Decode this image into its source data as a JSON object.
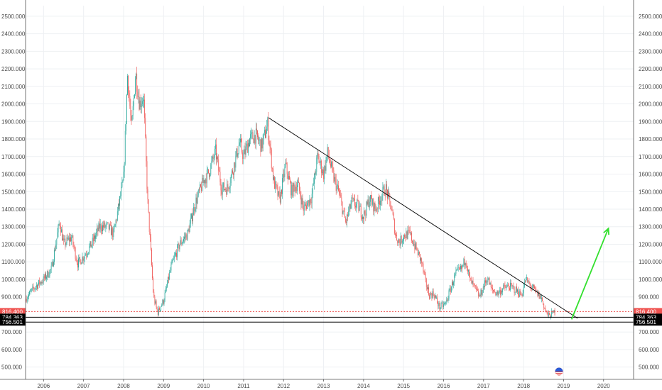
{
  "chart_data": {
    "type": "candlestick",
    "y_axis": {
      "range": [
        430,
        2560
      ],
      "ticks": [
        500,
        600,
        700,
        900,
        1000,
        1100,
        1200,
        1300,
        1400,
        1500,
        1600,
        1700,
        1800,
        1900,
        2000,
        2100,
        2200,
        2300,
        2400,
        2500
      ],
      "tick_labels": [
        "500.000",
        "600.000",
        "700.000",
        "900.000",
        "1000.000",
        "1100.000",
        "1200.000",
        "1300.000",
        "1400.000",
        "1500.000",
        "1600.000",
        "1700.000",
        "1800.000",
        "1900.000",
        "2000.000",
        "2100.000",
        "2200.000",
        "2300.000",
        "2400.000",
        "2500.000"
      ],
      "scale": "linear",
      "sides": [
        "left",
        "right"
      ]
    },
    "x_axis": {
      "range": [
        2005.55,
        2020.75
      ],
      "ticks": [
        2006,
        2007,
        2008,
        2009,
        2010,
        2011,
        2012,
        2013,
        2014,
        2015,
        2016,
        2017,
        2018,
        2019,
        2020
      ],
      "tick_labels": [
        "2006",
        "2007",
        "2008",
        "2009",
        "2010",
        "2011",
        "2012",
        "2013",
        "2014",
        "2015",
        "2016",
        "2017",
        "2018",
        "2019",
        "2020"
      ]
    },
    "grid": true,
    "colors": {
      "up": "#26a69a",
      "down": "#ef5350",
      "trendline": "#000000",
      "arrow": "#33e02e",
      "price_line": "#ef5350"
    },
    "price_path": [
      [
        2005.55,
        890
      ],
      [
        2005.8,
        960
      ],
      [
        2006.0,
        1000
      ],
      [
        2006.2,
        1060
      ],
      [
        2006.4,
        1330
      ],
      [
        2006.5,
        1200
      ],
      [
        2006.7,
        1240
      ],
      [
        2006.85,
        1090
      ],
      [
        2007.0,
        1130
      ],
      [
        2007.2,
        1200
      ],
      [
        2007.4,
        1300
      ],
      [
        2007.6,
        1300
      ],
      [
        2007.75,
        1260
      ],
      [
        2008.0,
        1570
      ],
      [
        2008.1,
        2170
      ],
      [
        2008.2,
        1850
      ],
      [
        2008.3,
        2180
      ],
      [
        2008.4,
        2000
      ],
      [
        2008.5,
        2050
      ],
      [
        2008.6,
        1450
      ],
      [
        2008.75,
        900
      ],
      [
        2008.85,
        810
      ],
      [
        2009.0,
        880
      ],
      [
        2009.2,
        1080
      ],
      [
        2009.4,
        1200
      ],
      [
        2009.6,
        1260
      ],
      [
        2009.8,
        1440
      ],
      [
        2010.0,
        1560
      ],
      [
        2010.15,
        1620
      ],
      [
        2010.3,
        1730
      ],
      [
        2010.45,
        1520
      ],
      [
        2010.6,
        1520
      ],
      [
        2010.75,
        1640
      ],
      [
        2010.9,
        1780
      ],
      [
        2011.0,
        1700
      ],
      [
        2011.15,
        1800
      ],
      [
        2011.3,
        1820
      ],
      [
        2011.45,
        1760
      ],
      [
        2011.6,
        1880
      ],
      [
        2011.75,
        1560
      ],
      [
        2011.9,
        1450
      ],
      [
        2012.05,
        1650
      ],
      [
        2012.2,
        1500
      ],
      [
        2012.35,
        1550
      ],
      [
        2012.5,
        1400
      ],
      [
        2012.7,
        1470
      ],
      [
        2012.85,
        1700
      ],
      [
        2013.0,
        1600
      ],
      [
        2013.1,
        1720
      ],
      [
        2013.25,
        1580
      ],
      [
        2013.4,
        1480
      ],
      [
        2013.55,
        1320
      ],
      [
        2013.7,
        1440
      ],
      [
        2013.85,
        1420
      ],
      [
        2014.0,
        1360
      ],
      [
        2014.15,
        1460
      ],
      [
        2014.3,
        1400
      ],
      [
        2014.45,
        1480
      ],
      [
        2014.55,
        1520
      ],
      [
        2014.7,
        1400
      ],
      [
        2014.8,
        1250
      ],
      [
        2014.9,
        1210
      ],
      [
        2015.0,
        1250
      ],
      [
        2015.15,
        1260
      ],
      [
        2015.3,
        1180
      ],
      [
        2015.45,
        1100
      ],
      [
        2015.55,
        980
      ],
      [
        2015.65,
        910
      ],
      [
        2015.75,
        920
      ],
      [
        2015.9,
        840
      ],
      [
        2016.05,
        860
      ],
      [
        2016.15,
        930
      ],
      [
        2016.3,
        1030
      ],
      [
        2016.45,
        1060
      ],
      [
        2016.55,
        1120
      ],
      [
        2016.65,
        1000
      ],
      [
        2016.8,
        940
      ],
      [
        2016.9,
        900
      ],
      [
        2017.0,
        960
      ],
      [
        2017.1,
        1010
      ],
      [
        2017.2,
        940
      ],
      [
        2017.35,
        920
      ],
      [
        2017.5,
        950
      ],
      [
        2017.65,
        960
      ],
      [
        2017.8,
        940
      ],
      [
        2017.95,
        910
      ],
      [
        2018.05,
        1000
      ],
      [
        2018.15,
        970
      ],
      [
        2018.3,
        930
      ],
      [
        2018.45,
        890
      ],
      [
        2018.55,
        820
      ],
      [
        2018.62,
        790
      ],
      [
        2018.7,
        800
      ],
      [
        2018.78,
        816
      ]
    ],
    "candle_count": 680,
    "annotations": {
      "trendline": {
        "from": [
          2011.62,
          1922
        ],
        "to": [
          2019.35,
          778
        ]
      },
      "arrow": {
        "from": [
          2019.2,
          772
        ],
        "to": [
          2020.12,
          1290
        ]
      },
      "horizontal_levels": [
        {
          "value": 816.4,
          "label": "816.400",
          "style": "dotted",
          "tag_color": "#ef5350"
        },
        {
          "value": 784.363,
          "label": "784.363",
          "style": "solid",
          "tag_color": "#000000"
        },
        {
          "value": 756.501,
          "label": "756.501",
          "style": "solid",
          "tag_color": "#000000"
        }
      ]
    }
  }
}
